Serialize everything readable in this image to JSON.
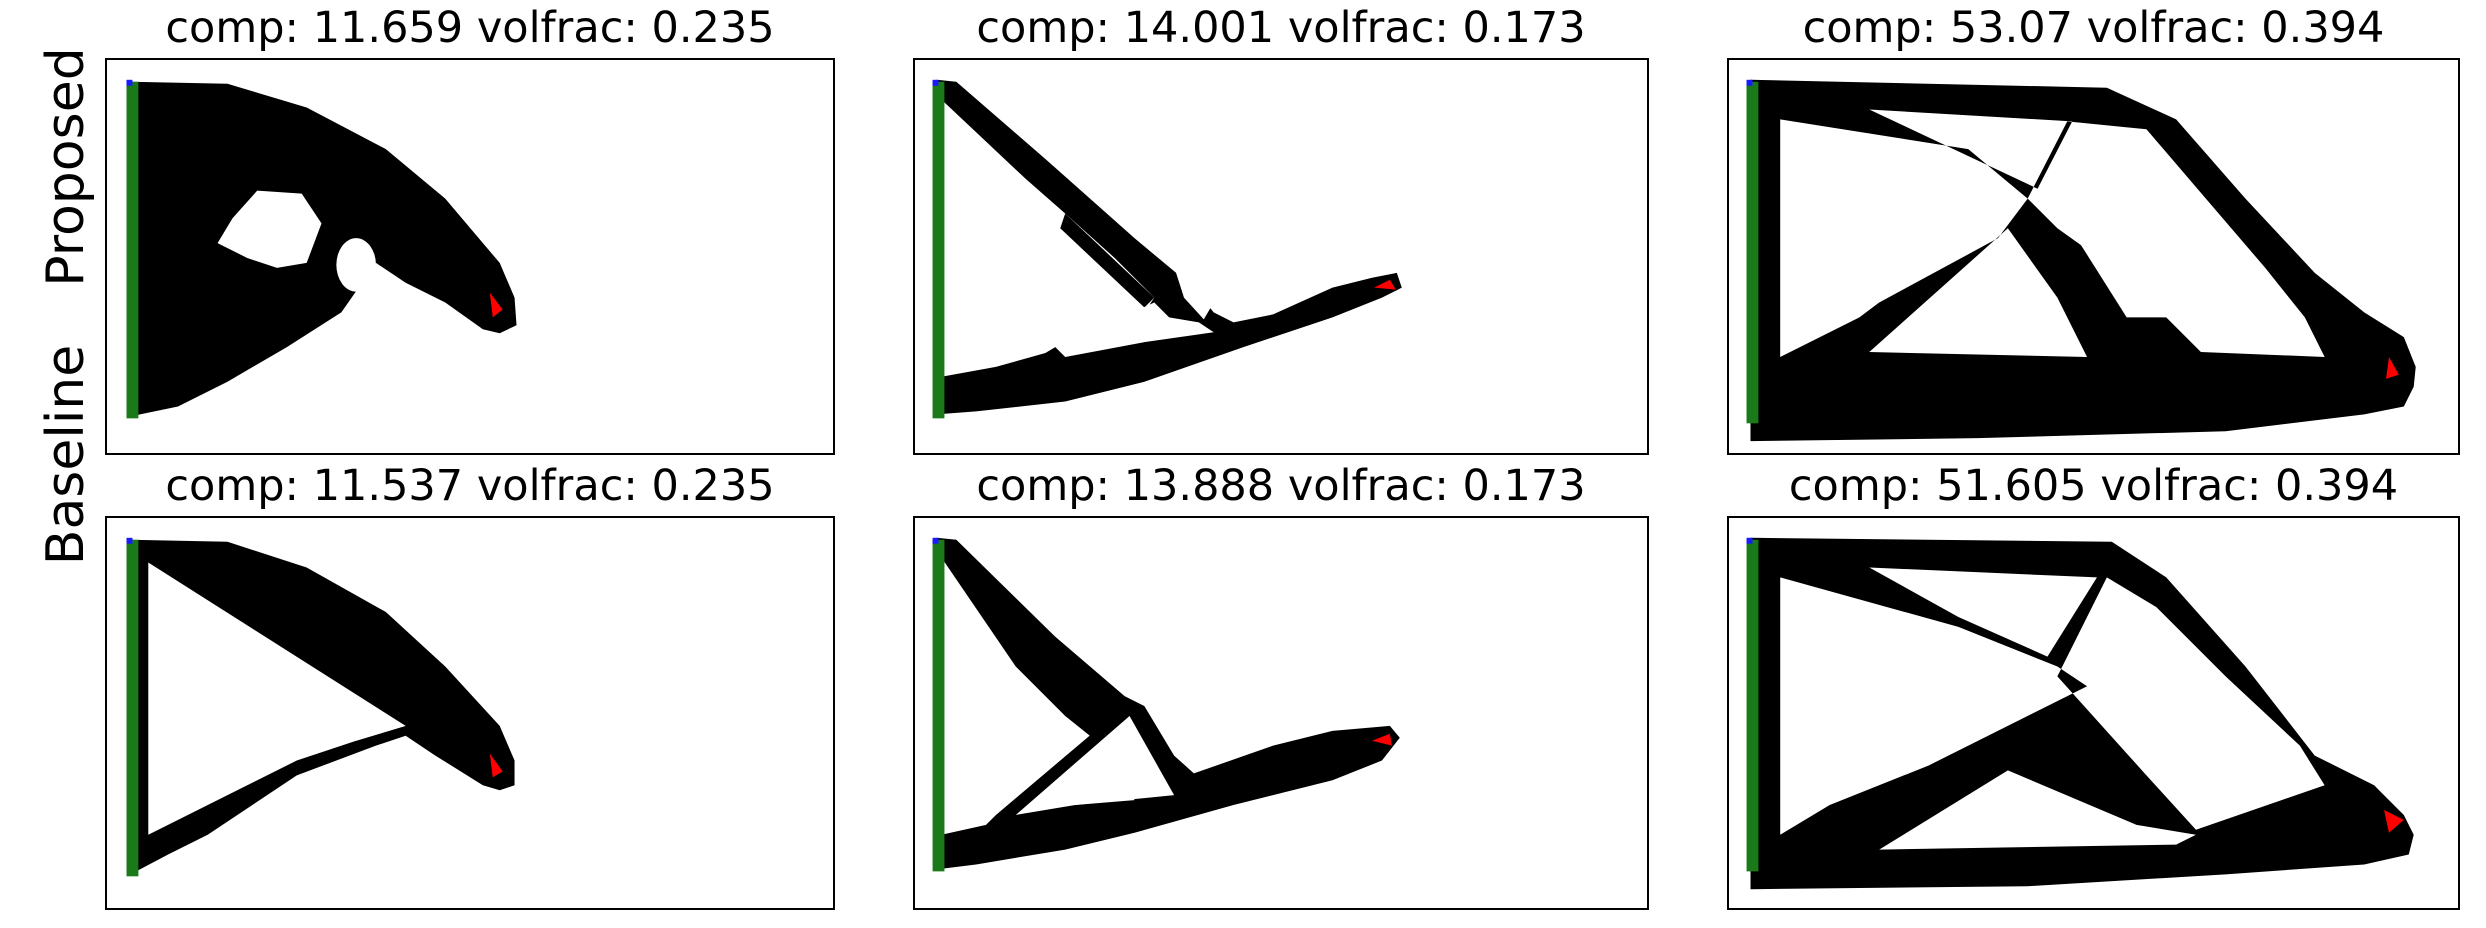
{
  "row_labels": {
    "proposed": "Proposed",
    "baseline": "Baseline"
  },
  "titles": {
    "r1c1": "comp: 11.659 volfrac: 0.235",
    "r1c2": "comp: 14.001 volfrac: 0.173",
    "r1c3": "comp: 53.07 volfrac: 0.394",
    "r2c1": "comp: 11.537 volfrac: 0.235",
    "r2c2": "comp: 13.888 volfrac: 0.173",
    "r2c3": "comp: 51.605 volfrac: 0.394"
  },
  "colors": {
    "material": "#000000",
    "support": "#1a7a1a",
    "load": "#ff0000",
    "corner_marker": "#1a1aff"
  }
}
